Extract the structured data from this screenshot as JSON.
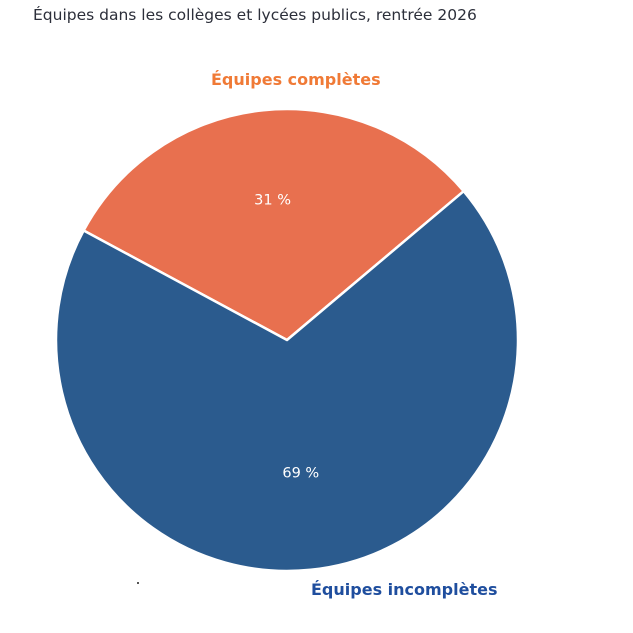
{
  "chart_data": {
    "type": "pie",
    "title": "Équipes dans les collèges et lycées publics, rentrée 2026",
    "slices": [
      {
        "label": "Équipes complètes",
        "value": 31,
        "value_label": "31 %",
        "color": "#e8704f",
        "label_color": "#f07a36"
      },
      {
        "label": "Équipes incomplètes",
        "value": 69,
        "value_label": "69 %",
        "color": "#2b5b8e",
        "label_color": "#1f4e9e"
      }
    ]
  }
}
